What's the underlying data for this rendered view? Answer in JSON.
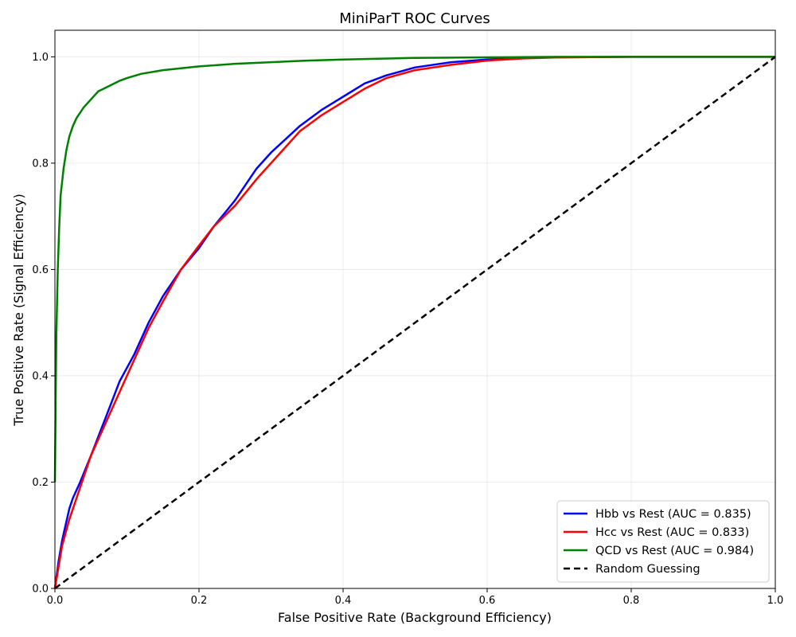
{
  "chart_data": {
    "type": "line",
    "title": "MiniParT ROC Curves",
    "xlabel": "False Positive Rate (Background Efficiency)",
    "ylabel": "True Positive Rate (Signal Efficiency)",
    "xlim": [
      0.0,
      1.0
    ],
    "ylim": [
      -0.0,
      1.05
    ],
    "x_ticks": [
      0.0,
      0.2,
      0.4,
      0.6,
      0.8,
      1.0
    ],
    "y_ticks": [
      0.0,
      0.2,
      0.4,
      0.6,
      0.8,
      1.0
    ],
    "x_tick_labels": [
      "0.0",
      "0.2",
      "0.4",
      "0.6",
      "0.8",
      "1.0"
    ],
    "y_tick_labels": [
      "0.0",
      "0.2",
      "0.4",
      "0.6",
      "0.8",
      "1.0"
    ],
    "grid": true,
    "legend_position": "bottom-right",
    "series": [
      {
        "name": "Hbb vs Rest (AUC = 0.835)",
        "color": "#0000ff",
        "style": "solid",
        "x": [
          0.0,
          0.005,
          0.01,
          0.02,
          0.025,
          0.035,
          0.05,
          0.07,
          0.09,
          0.11,
          0.13,
          0.15,
          0.175,
          0.2,
          0.22,
          0.25,
          0.28,
          0.3,
          0.32,
          0.34,
          0.37,
          0.4,
          0.43,
          0.46,
          0.5,
          0.55,
          0.6,
          0.65,
          0.7,
          0.8,
          0.9,
          1.0
        ],
        "y": [
          0.0,
          0.05,
          0.09,
          0.15,
          0.17,
          0.2,
          0.25,
          0.32,
          0.39,
          0.44,
          0.5,
          0.55,
          0.6,
          0.64,
          0.68,
          0.73,
          0.79,
          0.82,
          0.845,
          0.87,
          0.9,
          0.925,
          0.95,
          0.965,
          0.98,
          0.99,
          0.995,
          0.998,
          0.999,
          1.0,
          1.0,
          1.0
        ]
      },
      {
        "name": "Hcc vs Rest (AUC = 0.833)",
        "color": "#ff0000",
        "style": "solid",
        "x": [
          0.0,
          0.005,
          0.01,
          0.02,
          0.03,
          0.04,
          0.05,
          0.07,
          0.09,
          0.11,
          0.13,
          0.15,
          0.175,
          0.2,
          0.22,
          0.25,
          0.28,
          0.3,
          0.32,
          0.34,
          0.37,
          0.4,
          0.43,
          0.46,
          0.5,
          0.55,
          0.6,
          0.65,
          0.7,
          0.8,
          0.9,
          1.0
        ],
        "y": [
          0.0,
          0.04,
          0.08,
          0.13,
          0.17,
          0.21,
          0.25,
          0.31,
          0.37,
          0.43,
          0.49,
          0.54,
          0.6,
          0.645,
          0.68,
          0.72,
          0.77,
          0.8,
          0.83,
          0.86,
          0.89,
          0.915,
          0.94,
          0.96,
          0.975,
          0.985,
          0.993,
          0.997,
          0.999,
          1.0,
          1.0,
          1.0
        ]
      },
      {
        "name": "QCD vs Rest (AUC = 0.984)",
        "color": "#008000",
        "style": "solid",
        "x": [
          0.0,
          0.001,
          0.002,
          0.004,
          0.006,
          0.008,
          0.012,
          0.016,
          0.02,
          0.025,
          0.03,
          0.04,
          0.05,
          0.06,
          0.075,
          0.09,
          0.1,
          0.12,
          0.15,
          0.2,
          0.25,
          0.3,
          0.35,
          0.4,
          0.5,
          0.6,
          0.7,
          0.8,
          0.9,
          1.0
        ],
        "y": [
          0.2,
          0.35,
          0.48,
          0.6,
          0.68,
          0.74,
          0.79,
          0.825,
          0.85,
          0.87,
          0.885,
          0.905,
          0.92,
          0.935,
          0.945,
          0.955,
          0.96,
          0.968,
          0.975,
          0.982,
          0.987,
          0.99,
          0.993,
          0.995,
          0.998,
          0.999,
          1.0,
          1.0,
          1.0,
          1.0
        ]
      },
      {
        "name": "Random Guessing",
        "color": "#000000",
        "style": "dashed",
        "x": [
          0.0,
          1.0
        ],
        "y": [
          0.0,
          1.0
        ]
      }
    ]
  }
}
